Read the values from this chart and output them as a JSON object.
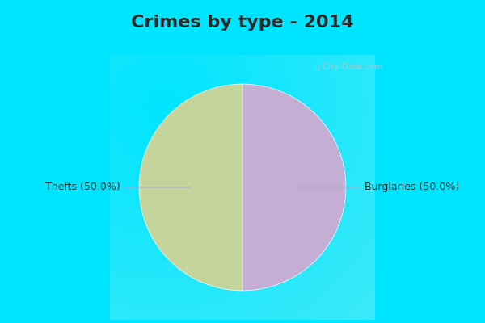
{
  "title": "Crimes by type - 2014",
  "slices": [
    {
      "label": "Thefts (50.0%)",
      "value": 50.0,
      "color": "#c5d49a"
    },
    {
      "label": "Burglaries (50.0%)",
      "value": 50.0,
      "color": "#c4aed4"
    }
  ],
  "background_fig": "#00e5ff",
  "background_axes": "#e0f5ec",
  "title_fontsize": 16,
  "title_color": "#2a2a2a",
  "label_fontsize": 9,
  "label_color": "#333333",
  "watermark": "City-Data.com"
}
